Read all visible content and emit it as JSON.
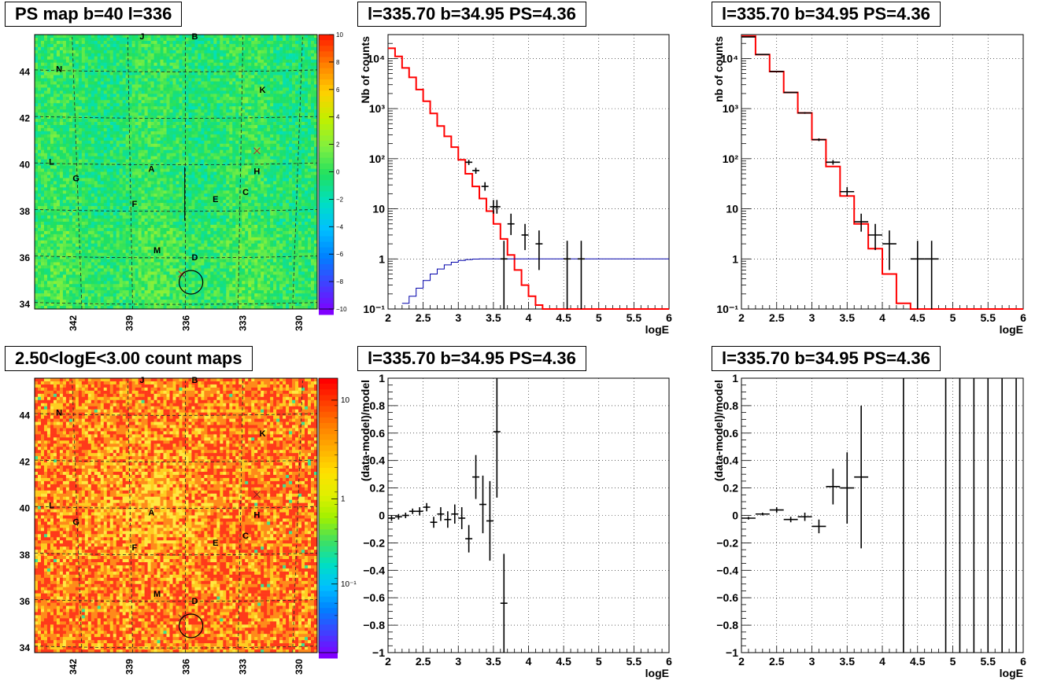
{
  "panels": {
    "ps_map": {
      "title": "PS map b=40 l=336",
      "colorbar_ticks": [
        "10",
        "8",
        "6",
        "4",
        "2",
        "0",
        "−2",
        "−4",
        "−6",
        "−8",
        "−10"
      ]
    },
    "count_map": {
      "title": "2.50<logE<3.00 count maps",
      "colorbar_ticks": [
        "10",
        "1",
        "10⁻¹"
      ]
    },
    "spec_top_mid": {
      "title": "l=335.70 b=34.95 PS=4.36"
    },
    "spec_top_right": {
      "title": "l=335.70 b=34.95 PS=4.36"
    },
    "res_bot_mid": {
      "title": "l=335.70 b=34.95 PS=4.36"
    },
    "res_bot_right": {
      "title": "l=335.70 b=34.95 PS=4.36"
    }
  },
  "chart_data": [
    {
      "panel": "ps_map",
      "type": "heatmap",
      "title": "PS map b=40 l=336",
      "xlabel": "",
      "ylabel": "",
      "x_ticks": [
        "342",
        "339",
        "336",
        "333",
        "330"
      ],
      "y_ticks": [
        "44",
        "42",
        "40",
        "38",
        "36",
        "34"
      ],
      "xlim": [
        344,
        329
      ],
      "ylim": [
        33.8,
        45.6
      ],
      "zlim": [
        -10,
        10
      ],
      "markers": [
        {
          "label": "J",
          "l": 338.3,
          "b": 45.4
        },
        {
          "label": "B",
          "l": 335.5,
          "b": 45.4
        },
        {
          "label": "N",
          "l": 342.7,
          "b": 44.0
        },
        {
          "label": "K",
          "l": 331.9,
          "b": 43.1
        },
        {
          "label": "L",
          "l": 343.1,
          "b": 40.0
        },
        {
          "label": "A",
          "l": 337.8,
          "b": 39.7
        },
        {
          "label": "H",
          "l": 332.2,
          "b": 39.6
        },
        {
          "label": "G",
          "l": 341.8,
          "b": 39.3
        },
        {
          "label": "C",
          "l": 332.8,
          "b": 38.7
        },
        {
          "label": "E",
          "l": 334.4,
          "b": 38.4
        },
        {
          "label": "F",
          "l": 338.7,
          "b": 38.2
        },
        {
          "label": "M",
          "l": 337.5,
          "b": 36.2
        },
        {
          "label": "D",
          "l": 335.5,
          "b": 35.9
        }
      ],
      "cross_markers": [
        {
          "l": 332.2,
          "b": 40.6
        },
        {
          "l": 336.2,
          "b": 35.3
        }
      ],
      "circle": {
        "l": 335.7,
        "b": 34.95
      }
    },
    {
      "panel": "count_map",
      "type": "heatmap",
      "title": "2.50<logE<3.00 count maps",
      "xlabel": "",
      "ylabel": "",
      "x_ticks": [
        "342",
        "339",
        "336",
        "333",
        "330"
      ],
      "y_ticks": [
        "44",
        "42",
        "40",
        "38",
        "36",
        "34"
      ],
      "xlim": [
        344,
        329
      ],
      "ylim": [
        33.8,
        45.6
      ],
      "zscale": "log",
      "zlim": [
        0.03,
        20
      ]
    },
    {
      "panel": "spec_top_mid",
      "type": "line",
      "title": "l=335.70 b=34.95 PS=4.36",
      "xlabel": "logE",
      "ylabel": "Nb of counts",
      "xlim": [
        2,
        6
      ],
      "ylim": [
        0.1,
        30000
      ],
      "yscale": "log",
      "x_ticks": [
        "2",
        "2.5",
        "3",
        "3.5",
        "4",
        "4.5",
        "5",
        "5.5",
        "6"
      ],
      "y_ticks": [
        "10⁻¹",
        "1",
        "10",
        "10²",
        "10³",
        "10⁴"
      ],
      "series": [
        {
          "style": "step",
          "color": "#ff0000",
          "edges": [
            2.0,
            2.1,
            2.2,
            2.3,
            2.4,
            2.5,
            2.6,
            2.7,
            2.8,
            2.9,
            3.0,
            3.1,
            3.2,
            3.3,
            3.4,
            3.5,
            3.6,
            3.7,
            3.8,
            3.9,
            4.0,
            4.1,
            4.2,
            6.0
          ],
          "values": [
            16000,
            11000,
            6500,
            4200,
            2400,
            1400,
            800,
            450,
            280,
            170,
            95,
            50,
            28,
            16,
            9,
            5,
            2.5,
            1.2,
            0.6,
            0.3,
            0.18,
            0.12,
            0.1
          ]
        },
        {
          "style": "step",
          "color": "#0000aa",
          "edges": [
            2.2,
            2.3,
            2.4,
            2.5,
            2.6,
            2.7,
            2.8,
            2.9,
            3.0,
            3.1,
            3.2,
            3.3,
            3.4,
            3.5,
            3.6,
            6.0
          ],
          "values": [
            0.13,
            0.18,
            0.26,
            0.37,
            0.5,
            0.63,
            0.76,
            0.86,
            0.93,
            0.97,
            0.99,
            1.0,
            1.0,
            1.0,
            1.0
          ]
        },
        {
          "style": "errorbar",
          "color": "#000000",
          "points": [
            {
              "x": 3.15,
              "y": 85,
              "lo": 75,
              "hi": 95,
              "xe": 0.05
            },
            {
              "x": 3.25,
              "y": 58,
              "lo": 50,
              "hi": 66,
              "xe": 0.05
            },
            {
              "x": 3.38,
              "y": 28,
              "lo": 23,
              "hi": 34,
              "xe": 0.05
            },
            {
              "x": 3.5,
              "y": 11,
              "lo": 8,
              "hi": 15,
              "xe": 0.05
            },
            {
              "x": 3.55,
              "y": 11,
              "lo": 8,
              "hi": 15,
              "xe": 0.05
            },
            {
              "x": 3.65,
              "y": 1,
              "lo": 0.1,
              "hi": 2.3,
              "xe": 0.05
            },
            {
              "x": 3.75,
              "y": 5,
              "lo": 3,
              "hi": 8,
              "xe": 0.05
            },
            {
              "x": 3.95,
              "y": 3,
              "lo": 1.5,
              "hi": 5,
              "xe": 0.05
            },
            {
              "x": 4.15,
              "y": 2,
              "lo": 0.6,
              "hi": 3.7,
              "xe": 0.05
            },
            {
              "x": 4.55,
              "y": 1,
              "lo": 0.1,
              "hi": 2.3,
              "xe": 0.05
            },
            {
              "x": 4.75,
              "y": 1,
              "lo": 0.1,
              "hi": 2.3,
              "xe": 0.05
            }
          ]
        }
      ]
    },
    {
      "panel": "spec_top_right",
      "type": "line",
      "title": "l=335.70 b=34.95 PS=4.36",
      "xlabel": "logE",
      "ylabel": "nb of counts",
      "xlim": [
        2,
        6
      ],
      "ylim": [
        0.1,
        30000
      ],
      "yscale": "log",
      "x_ticks": [
        "2",
        "2.5",
        "3",
        "3.5",
        "4",
        "4.5",
        "5",
        "5.5",
        "6"
      ],
      "y_ticks": [
        "10⁻¹",
        "1",
        "10",
        "10²",
        "10³",
        "10⁴"
      ],
      "series": [
        {
          "style": "step",
          "color": "#ff0000",
          "edges": [
            2.0,
            2.2,
            2.4,
            2.6,
            2.8,
            3.0,
            3.2,
            3.4,
            3.6,
            3.8,
            4.0,
            4.2,
            4.4,
            6.0
          ],
          "values": [
            28000,
            12000,
            5500,
            2100,
            820,
            240,
            70,
            18,
            5,
            1.6,
            0.5,
            0.13,
            0.1
          ]
        },
        {
          "style": "errorbar",
          "color": "#000000",
          "points": [
            {
              "x": 2.1,
              "y": 27000,
              "lo": 26500,
              "hi": 27500,
              "xe": 0.1
            },
            {
              "x": 2.3,
              "y": 12000,
              "lo": 11800,
              "hi": 12200,
              "xe": 0.1
            },
            {
              "x": 2.5,
              "y": 5500,
              "lo": 5400,
              "hi": 5600,
              "xe": 0.1
            },
            {
              "x": 2.7,
              "y": 2100,
              "lo": 2050,
              "hi": 2150,
              "xe": 0.1
            },
            {
              "x": 2.9,
              "y": 820,
              "lo": 790,
              "hi": 850,
              "xe": 0.1
            },
            {
              "x": 3.1,
              "y": 240,
              "lo": 225,
              "hi": 255,
              "xe": 0.1
            },
            {
              "x": 3.3,
              "y": 85,
              "lo": 76,
              "hi": 94,
              "xe": 0.1
            },
            {
              "x": 3.5,
              "y": 22,
              "lo": 18,
              "hi": 27,
              "xe": 0.1
            },
            {
              "x": 3.7,
              "y": 5.5,
              "lo": 3.5,
              "hi": 8,
              "xe": 0.1
            },
            {
              "x": 3.9,
              "y": 3,
              "lo": 1.5,
              "hi": 5,
              "xe": 0.1
            },
            {
              "x": 4.1,
              "y": 2,
              "lo": 0.6,
              "hi": 3.7,
              "xe": 0.1
            },
            {
              "x": 4.5,
              "y": 1,
              "lo": 0.1,
              "hi": 2.3,
              "xe": 0.1
            },
            {
              "x": 4.7,
              "y": 1,
              "lo": 0.1,
              "hi": 2.3,
              "xe": 0.1
            }
          ]
        }
      ]
    },
    {
      "panel": "res_bot_mid",
      "type": "scatter",
      "title": "l=335.70 b=34.95 PS=4.36",
      "xlabel": "logE",
      "ylabel": "(data-model)/model",
      "xlim": [
        2,
        6
      ],
      "ylim": [
        -1,
        1
      ],
      "x_ticks": [
        "2",
        "2.5",
        "3",
        "3.5",
        "4",
        "4.5",
        "5",
        "5.5",
        "6"
      ],
      "y_ticks": [
        "−1",
        "−0.8",
        "−0.6",
        "−0.4",
        "−0.2",
        "0",
        "0.2",
        "0.4",
        "0.6",
        "0.8",
        "1"
      ],
      "series": [
        {
          "style": "errorbar",
          "color": "#000000",
          "points": [
            {
              "x": 2.05,
              "y": -0.02,
              "lo": -0.04,
              "hi": 0.0,
              "xe": 0.05
            },
            {
              "x": 2.15,
              "y": -0.01,
              "lo": -0.03,
              "hi": 0.01,
              "xe": 0.05
            },
            {
              "x": 2.25,
              "y": 0.0,
              "lo": -0.02,
              "hi": 0.02,
              "xe": 0.05
            },
            {
              "x": 2.35,
              "y": 0.03,
              "lo": 0.01,
              "hi": 0.05,
              "xe": 0.05
            },
            {
              "x": 2.45,
              "y": 0.03,
              "lo": 0.0,
              "hi": 0.06,
              "xe": 0.05
            },
            {
              "x": 2.55,
              "y": 0.06,
              "lo": 0.03,
              "hi": 0.09,
              "xe": 0.05
            },
            {
              "x": 2.65,
              "y": -0.05,
              "lo": -0.09,
              "hi": -0.01,
              "xe": 0.05
            },
            {
              "x": 2.75,
              "y": 0.01,
              "lo": -0.04,
              "hi": 0.06,
              "xe": 0.05
            },
            {
              "x": 2.85,
              "y": -0.03,
              "lo": -0.09,
              "hi": 0.03,
              "xe": 0.05
            },
            {
              "x": 2.95,
              "y": 0.01,
              "lo": -0.06,
              "hi": 0.08,
              "xe": 0.05
            },
            {
              "x": 3.05,
              "y": -0.02,
              "lo": -0.1,
              "hi": 0.06,
              "xe": 0.05
            },
            {
              "x": 3.15,
              "y": -0.17,
              "lo": -0.27,
              "hi": -0.07,
              "xe": 0.05
            },
            {
              "x": 3.25,
              "y": 0.28,
              "lo": 0.12,
              "hi": 0.44,
              "xe": 0.05
            },
            {
              "x": 3.35,
              "y": 0.08,
              "lo": -0.13,
              "hi": 0.29,
              "xe": 0.05
            },
            {
              "x": 3.45,
              "y": -0.04,
              "lo": -0.33,
              "hi": 0.25,
              "xe": 0.05
            },
            {
              "x": 3.55,
              "y": 0.61,
              "lo": 0.13,
              "hi": 1.0,
              "xe": 0.05
            },
            {
              "x": 3.65,
              "y": -0.64,
              "lo": -1.0,
              "hi": -0.28,
              "xe": 0.05
            }
          ]
        }
      ]
    },
    {
      "panel": "res_bot_right",
      "type": "scatter",
      "title": "l=335.70 b=34.95 PS=4.36",
      "xlabel": "logE",
      "ylabel": "(data-model)/model",
      "xlim": [
        2,
        6
      ],
      "ylim": [
        -1,
        1
      ],
      "x_ticks": [
        "2",
        "2.5",
        "3",
        "3.5",
        "4",
        "4.5",
        "5",
        "5.5",
        "6"
      ],
      "y_ticks": [
        "−1",
        "−0.8",
        "−0.6",
        "−0.4",
        "−0.2",
        "0",
        "0.2",
        "0.4",
        "0.6",
        "0.8",
        "1"
      ],
      "series": [
        {
          "style": "errorbar",
          "color": "#000000",
          "points": [
            {
              "x": 2.1,
              "y": -0.02,
              "lo": -0.03,
              "hi": -0.01,
              "xe": 0.1
            },
            {
              "x": 2.3,
              "y": 0.01,
              "lo": 0.0,
              "hi": 0.02,
              "xe": 0.1
            },
            {
              "x": 2.5,
              "y": 0.04,
              "lo": 0.02,
              "hi": 0.06,
              "xe": 0.1
            },
            {
              "x": 2.7,
              "y": -0.03,
              "lo": -0.05,
              "hi": -0.01,
              "xe": 0.1
            },
            {
              "x": 2.9,
              "y": -0.01,
              "lo": -0.04,
              "hi": 0.02,
              "xe": 0.1
            },
            {
              "x": 3.1,
              "y": -0.08,
              "lo": -0.13,
              "hi": -0.03,
              "xe": 0.1
            },
            {
              "x": 3.3,
              "y": 0.21,
              "lo": 0.08,
              "hi": 0.34,
              "xe": 0.1
            },
            {
              "x": 3.5,
              "y": 0.2,
              "lo": -0.06,
              "hi": 0.46,
              "xe": 0.1
            },
            {
              "x": 3.7,
              "y": 0.28,
              "lo": -0.24,
              "hi": 0.8,
              "xe": 0.1
            },
            {
              "x": 4.3,
              "y": 1.0,
              "lo": -1.0,
              "hi": 1.0,
              "xe": 0.0
            },
            {
              "x": 4.9,
              "y": 1.0,
              "lo": -1.0,
              "hi": 1.0,
              "xe": 0.0
            },
            {
              "x": 5.1,
              "y": 1.0,
              "lo": -1.0,
              "hi": 1.0,
              "xe": 0.0
            },
            {
              "x": 5.3,
              "y": 1.0,
              "lo": -1.0,
              "hi": 1.0,
              "xe": 0.0
            },
            {
              "x": 5.5,
              "y": 1.0,
              "lo": -1.0,
              "hi": 1.0,
              "xe": 0.0
            },
            {
              "x": 5.7,
              "y": 1.0,
              "lo": -1.0,
              "hi": 1.0,
              "xe": 0.0
            },
            {
              "x": 5.9,
              "y": 1.0,
              "lo": -1.0,
              "hi": 1.0,
              "xe": 0.0
            }
          ]
        }
      ]
    }
  ]
}
